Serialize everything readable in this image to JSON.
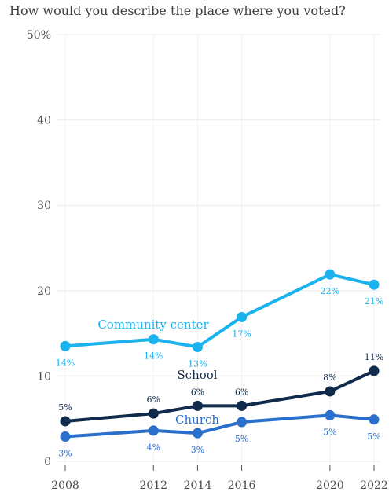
{
  "chart_data": {
    "type": "line",
    "title": "How would you describe the place where you voted?",
    "x": [
      2008,
      2012,
      2014,
      2016,
      2020,
      2022
    ],
    "ylim": [
      0,
      50
    ],
    "yticks": [
      0,
      10,
      20,
      30,
      40,
      50
    ],
    "ytick_labels": [
      "0",
      "10",
      "20",
      "30",
      "40",
      "50%"
    ],
    "grid": true,
    "series": [
      {
        "name": "Community center",
        "color": "#1ab3f0",
        "values": [
          13.5,
          14.3,
          13.4,
          16.9,
          21.9,
          20.7
        ],
        "labels": [
          "14%",
          "14%",
          "13%",
          "17%",
          "22%",
          "21%"
        ]
      },
      {
        "name": "School",
        "color": "#0f2a4a",
        "values": [
          4.7,
          5.6,
          6.5,
          6.5,
          8.2,
          10.6
        ],
        "labels": [
          "5%",
          "6%",
          "6%",
          "6%",
          "8%",
          "11%"
        ]
      },
      {
        "name": "Church",
        "color": "#2a6fcc",
        "values": [
          2.9,
          3.6,
          3.3,
          4.6,
          5.4,
          4.9
        ],
        "labels": [
          "3%",
          "4%",
          "3%",
          "5%",
          "5%",
          "5%"
        ]
      }
    ]
  }
}
